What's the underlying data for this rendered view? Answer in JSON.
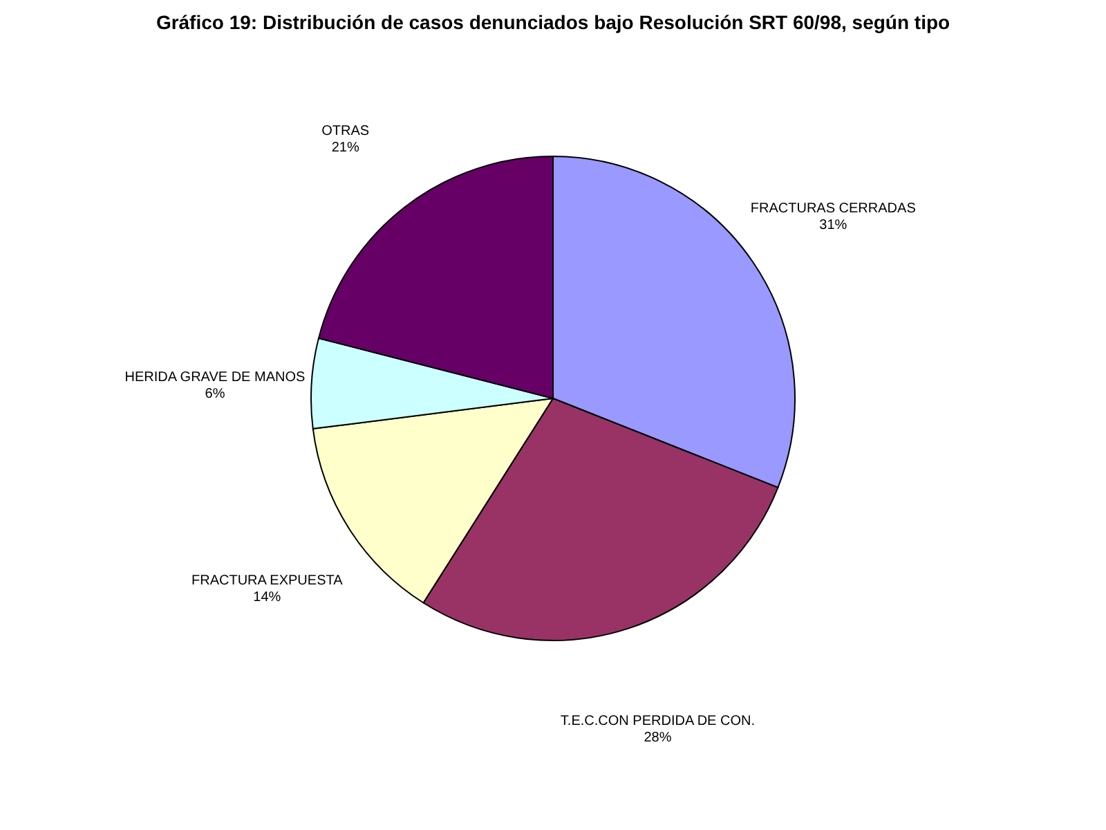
{
  "chart_data": {
    "type": "pie",
    "title": "Gráfico 19: Distribución de casos denunciados bajo Resolución SRT 60/98, según tipo",
    "categories": [
      "FRACTURAS CERRADAS",
      "T.E.C.CON PERDIDA DE CON.",
      "FRACTURA EXPUESTA",
      "HERIDA GRAVE DE MANOS",
      "OTRAS"
    ],
    "values": [
      31,
      28,
      14,
      6,
      21
    ],
    "value_labels": [
      "31%",
      "28%",
      "14%",
      "6%",
      "21%"
    ],
    "colors": [
      "#9999ff",
      "#993366",
      "#ffffcc",
      "#ccffff",
      "#660066"
    ]
  }
}
